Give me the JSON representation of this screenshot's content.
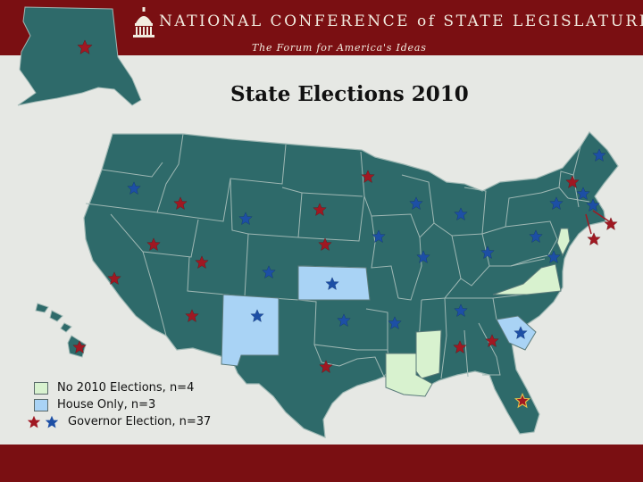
{
  "header": {
    "org_title": "NATIONAL CONFERENCE of STATE LEGISLATURES",
    "tagline": "The Forum for America's Ideas"
  },
  "map": {
    "title": "State Elections 2010",
    "colors": {
      "state_fill": "#2e6a6a",
      "no_election": "#d8f2cf",
      "house_only": "#a9d3f5",
      "star_red": "#a01822",
      "star_blue": "#1d4fa5",
      "star_gold": "#e7c34a"
    },
    "legend": [
      {
        "label": "No 2010 Elections, n=4",
        "color": "#d8f2cf",
        "marker": "swatch"
      },
      {
        "label": "House Only, n=3",
        "color": "#a9d3f5",
        "marker": "swatch"
      },
      {
        "label": "Governor Election, n=37",
        "marker": "star-pair"
      }
    ]
  }
}
